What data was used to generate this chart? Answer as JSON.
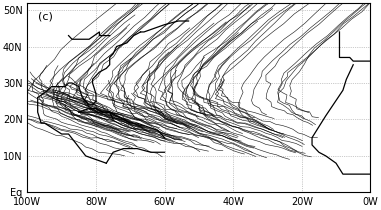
{
  "xlim": [
    -100,
    0
  ],
  "ylim": [
    0,
    52
  ],
  "xticks": [
    -100,
    -80,
    -60,
    -40,
    -20,
    0
  ],
  "yticks": [
    0,
    10,
    20,
    30,
    40,
    50
  ],
  "xticklabels": [
    "100W",
    "80W",
    "60W",
    "40W",
    "20W",
    "0W"
  ],
  "yticklabels": [
    "Eq",
    "10N",
    "20N",
    "30N",
    "40N",
    "50N"
  ],
  "label": "(c)",
  "track_color": "black",
  "track_lw": 0.45,
  "background_color": "white",
  "grid_color": "#999999",
  "grid_ls": "dotted",
  "coast_color": "black",
  "coast_lw": 0.9,
  "tick_fontsize": 7,
  "label_fontsize": 8
}
